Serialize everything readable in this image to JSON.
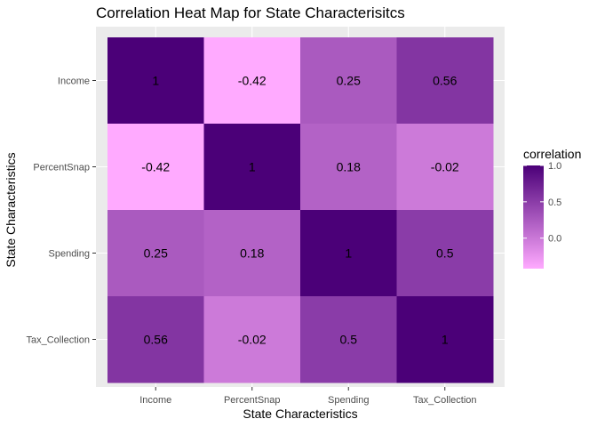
{
  "chart_data": {
    "type": "heatmap",
    "title": "Correlation Heat Map for State Characterisitcs",
    "xlabel": "State Characteristics",
    "ylabel": "State Characteristics",
    "x_categories": [
      "Income",
      "PercentSnap",
      "Spending",
      "Tax_Collection"
    ],
    "y_categories": [
      "Income",
      "PercentSnap",
      "Spending",
      "Tax_Collection"
    ],
    "values": [
      [
        1,
        -0.42,
        0.25,
        0.56
      ],
      [
        -0.42,
        1,
        0.18,
        -0.02
      ],
      [
        0.25,
        0.18,
        1,
        0.5
      ],
      [
        0.56,
        -0.02,
        0.5,
        1
      ]
    ],
    "cell_labels": [
      [
        "1",
        "-0.42",
        "0.25",
        "0.56"
      ],
      [
        "-0.42",
        "1",
        "0.18",
        "-0.02"
      ],
      [
        "0.25",
        "0.18",
        "1",
        "0.5"
      ],
      [
        "0.56",
        "-0.02",
        "0.5",
        "1"
      ]
    ],
    "legend": {
      "title": "correlation",
      "ticks": [
        {
          "value": 1.0,
          "label": "1.0"
        },
        {
          "value": 0.5,
          "label": "0.5"
        },
        {
          "value": 0.0,
          "label": "0.0"
        }
      ],
      "range": [
        -0.42,
        1
      ],
      "low_color": "#FFAAFF",
      "high_color": "#4B0078",
      "placement": "right"
    },
    "panel_background": "#EBEBEB",
    "grid": true
  }
}
